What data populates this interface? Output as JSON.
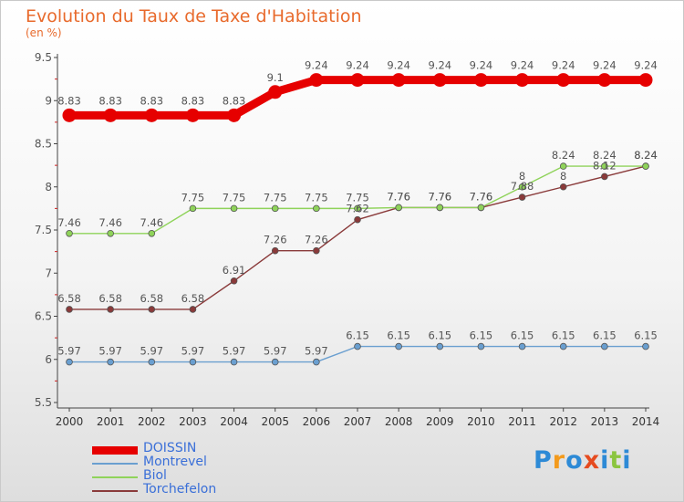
{
  "header": {
    "title": "Evolution du Taux de Taxe d'Habitation",
    "unit": "(en %)"
  },
  "brand": {
    "text": "Proxiti",
    "colors": [
      "#2d8ad6",
      "#f39a1c",
      "#2d8ad6",
      "#e64b1f",
      "#2d8ad6",
      "#8bc53f",
      "#2d8ad6"
    ]
  },
  "chart_data": {
    "type": "line",
    "title": "Evolution du Taux de Taxe d'Habitation",
    "subtitle": "(en %)",
    "xlabel": "",
    "ylabel": "(en %)",
    "ylim": [
      5.5,
      9.5
    ],
    "yticks": [
      5.5,
      6,
      6.5,
      7,
      7.5,
      8,
      8.5,
      9,
      9.5
    ],
    "ytick_labels": [
      "5.5",
      "6",
      "6.5",
      "7",
      "7.5",
      "8",
      "8.5",
      "9",
      "9.5"
    ],
    "categories": [
      "2000",
      "2001",
      "2002",
      "2003",
      "2004",
      "2005",
      "2006",
      "2007",
      "2008",
      "2009",
      "2010",
      "2011",
      "2012",
      "2013",
      "2014"
    ],
    "legend_position": "bottom-left",
    "series": [
      {
        "name": "DOISSIN",
        "color": "#e60000",
        "values": [
          8.83,
          8.83,
          8.83,
          8.83,
          8.83,
          9.1,
          9.24,
          9.24,
          9.24,
          9.24,
          9.24,
          9.24,
          9.24,
          9.24,
          9.24
        ],
        "labels": [
          "8.83",
          "8.83",
          "8.83",
          "8.83",
          "8.83",
          "9.1",
          "9.24",
          "9.24",
          "9.24",
          "9.24",
          "9.24",
          "9.24",
          "9.24",
          "9.24",
          "9.24"
        ]
      },
      {
        "name": "Montrevel",
        "color": "#6a9fd0",
        "values": [
          5.97,
          5.97,
          5.97,
          5.97,
          5.97,
          5.97,
          5.97,
          6.15,
          6.15,
          6.15,
          6.15,
          6.15,
          6.15,
          6.15,
          6.15
        ],
        "labels": [
          "5.97",
          "5.97",
          "5.97",
          "5.97",
          "5.97",
          "5.97",
          "5.97",
          "6.15",
          "6.15",
          "6.15",
          "6.15",
          "6.15",
          "6.15",
          "6.15",
          "6.15"
        ]
      },
      {
        "name": "Biol",
        "color": "#8fd35a",
        "values": [
          7.46,
          7.46,
          7.46,
          7.75,
          7.75,
          7.75,
          7.75,
          7.75,
          7.76,
          7.76,
          7.76,
          8,
          8.24,
          8.24,
          8.24
        ],
        "labels": [
          "7.46",
          "7.46",
          "7.46",
          "7.75",
          "7.75",
          "7.75",
          "7.75",
          "7.75",
          "7.76",
          "7.76",
          "7.76",
          "8",
          "8.24",
          "8.24",
          "8.24"
        ]
      },
      {
        "name": "Torchefelon",
        "color": "#8a3a3a",
        "values": [
          6.58,
          6.58,
          6.58,
          6.58,
          6.91,
          7.26,
          7.26,
          7.62,
          7.76,
          7.76,
          7.76,
          7.88,
          8,
          8.12,
          8.24
        ],
        "labels": [
          "6.58",
          "6.58",
          "6.58",
          "6.58",
          "6.91",
          "7.26",
          "7.26",
          "7.62",
          "7.76",
          "7.76",
          "7.76",
          "7.88",
          "8",
          "8.12",
          "8.24"
        ]
      }
    ]
  }
}
